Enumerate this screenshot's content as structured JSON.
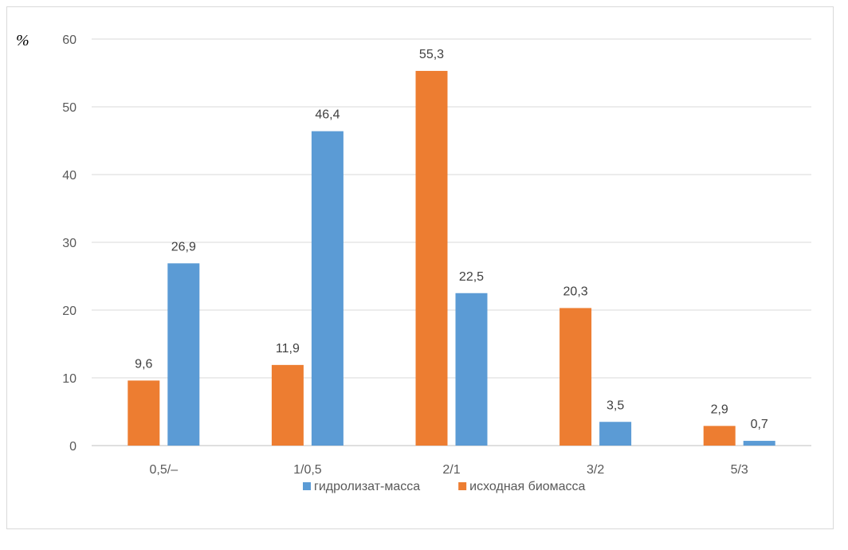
{
  "chart_data": {
    "type": "bar",
    "ylabel": "%",
    "categories": [
      "0,5/–",
      "1/0,5",
      "2/1",
      "3/2",
      "5/3"
    ],
    "series": [
      {
        "name": "исходная биомасса",
        "color": "#ed7d31",
        "values": [
          9.6,
          11.9,
          55.3,
          20.3,
          2.9
        ],
        "labels": [
          "9,6",
          "11,9",
          "55,3",
          "20,3",
          "2,9"
        ]
      },
      {
        "name": "гидролизат-масса",
        "color": "#5b9bd5",
        "values": [
          26.9,
          46.4,
          22.5,
          3.5,
          0.7
        ],
        "labels": [
          "26,9",
          "46,4",
          "22,5",
          "3,5",
          "0,7"
        ]
      }
    ],
    "legend_order": [
      1,
      0
    ],
    "ylim": [
      0,
      60
    ],
    "yticks": [
      0,
      10,
      20,
      30,
      40,
      50,
      60
    ],
    "grid": true,
    "legend_position": "bottom"
  }
}
